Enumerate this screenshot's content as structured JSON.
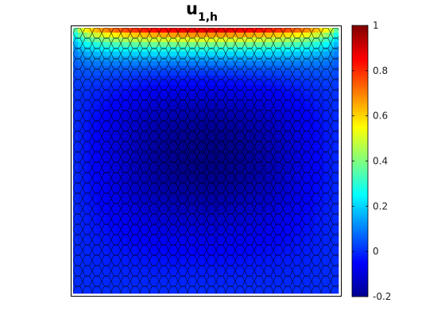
{
  "chart_data": {
    "type": "heatmap",
    "title": "u",
    "title_subscript": "1,h",
    "xlabel": "",
    "ylabel": "",
    "colormap": "jet",
    "color_range": [
      -0.2,
      1
    ],
    "colorbar": {
      "position": "right",
      "ticks": [
        -0.2,
        0,
        0.2,
        0.4,
        0.6,
        0.8,
        1
      ],
      "tick_labels": [
        "-0.2",
        "0",
        "0.2",
        "0.4",
        "0.6",
        "0.8",
        "1"
      ]
    },
    "field_summary": {
      "max": 1,
      "max_location": "top edge",
      "min": -0.2,
      "min_location": "upper-center interior"
    },
    "mesh": "polygonal (hexagonal-like) cells, black edges",
    "grid": false,
    "axes_ticks": false
  }
}
